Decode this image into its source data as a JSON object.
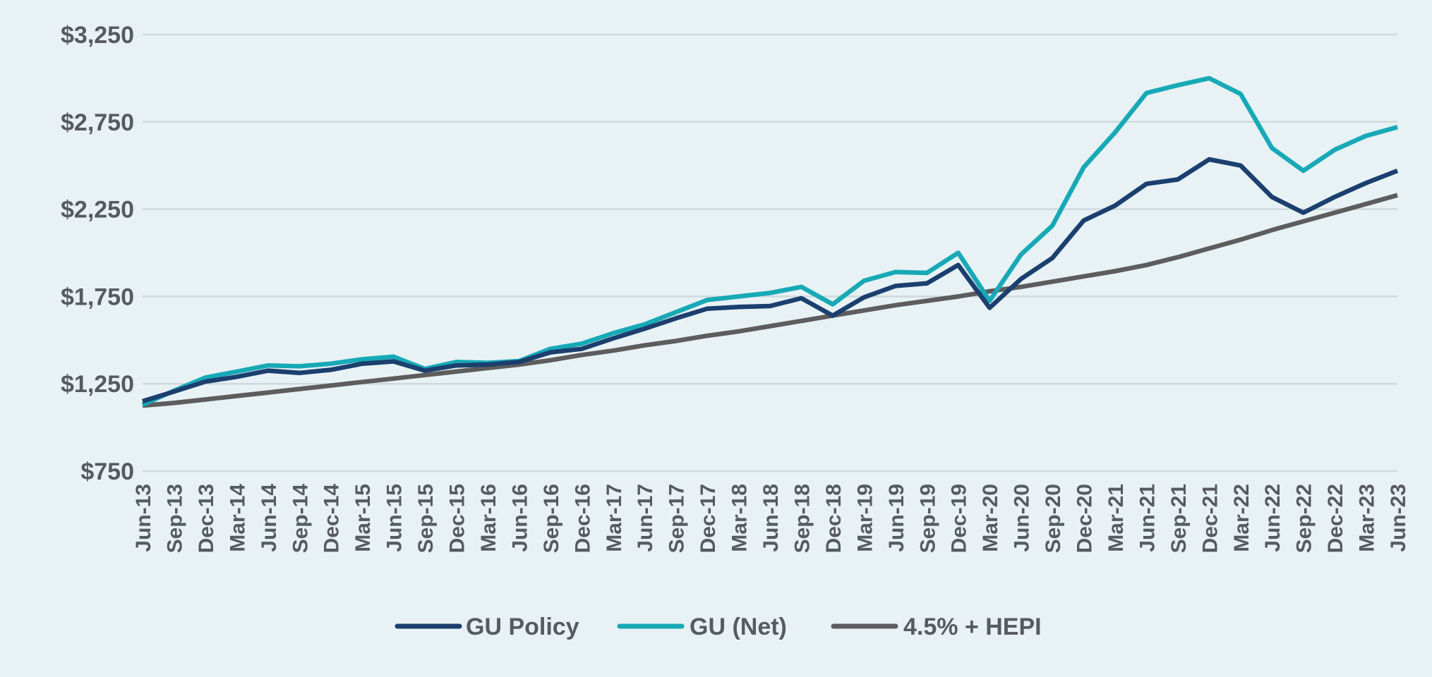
{
  "chart_data": {
    "type": "line",
    "title": "",
    "xlabel": "",
    "ylabel": "",
    "ylim": [
      750,
      3250
    ],
    "yticks": [
      "$750",
      "$1,250",
      "$1,750",
      "$2,250",
      "$2,750",
      "$3,250"
    ],
    "ytick_values": [
      750,
      1250,
      1750,
      2250,
      2750,
      3250
    ],
    "grid": true,
    "legend": "bottom",
    "categories": [
      "Jun-13",
      "Sep-13",
      "Dec-13",
      "Mar-14",
      "Jun-14",
      "Sep-14",
      "Dec-14",
      "Mar-15",
      "Jun-15",
      "Sep-15",
      "Dec-15",
      "Mar-16",
      "Jun-16",
      "Sep-16",
      "Dec-16",
      "Mar-17",
      "Jun-17",
      "Sep-17",
      "Dec-17",
      "Mar-18",
      "Jun-18",
      "Sep-18",
      "Dec-18",
      "Mar-19",
      "Jun-19",
      "Sep-19",
      "Dec-19",
      "Mar-20",
      "Jun-20",
      "Sep-20",
      "Dec-20",
      "Mar-21",
      "Jun-21",
      "Sep-21",
      "Dec-21",
      "Mar-22",
      "Jun-22",
      "Sep-22",
      "Dec-22",
      "Mar-23",
      "Jun-23"
    ],
    "series": [
      {
        "name": "GU Policy",
        "color": "#1b3f6e",
        "values": [
          1150,
          1205,
          1262,
          1290,
          1325,
          1312,
          1330,
          1365,
          1378,
          1325,
          1355,
          1360,
          1375,
          1430,
          1450,
          1510,
          1565,
          1625,
          1680,
          1690,
          1695,
          1740,
          1640,
          1745,
          1810,
          1825,
          1930,
          1685,
          1850,
          1970,
          2185,
          2270,
          2395,
          2420,
          2535,
          2500,
          2320,
          2230,
          2320,
          2400,
          2470
        ]
      },
      {
        "name": "GU (Net)",
        "color": "#17a9b6",
        "values": [
          1130,
          1210,
          1285,
          1320,
          1355,
          1350,
          1365,
          1390,
          1405,
          1335,
          1375,
          1370,
          1380,
          1450,
          1480,
          1540,
          1590,
          1660,
          1730,
          1750,
          1770,
          1805,
          1705,
          1840,
          1890,
          1885,
          2000,
          1725,
          1990,
          2155,
          2490,
          2690,
          2915,
          2960,
          3000,
          2910,
          2600,
          2470,
          2590,
          2670,
          2720
        ]
      },
      {
        "name": "4.5% + HEPI",
        "color": "#5d5d5d",
        "values": [
          1125,
          1140,
          1160,
          1180,
          1200,
          1220,
          1240,
          1260,
          1280,
          1300,
          1320,
          1340,
          1360,
          1385,
          1415,
          1440,
          1470,
          1495,
          1525,
          1550,
          1580,
          1610,
          1640,
          1670,
          1700,
          1725,
          1750,
          1780,
          1805,
          1835,
          1865,
          1895,
          1930,
          1975,
          2025,
          2075,
          2130,
          2180,
          2230,
          2280,
          2330
        ]
      }
    ]
  }
}
